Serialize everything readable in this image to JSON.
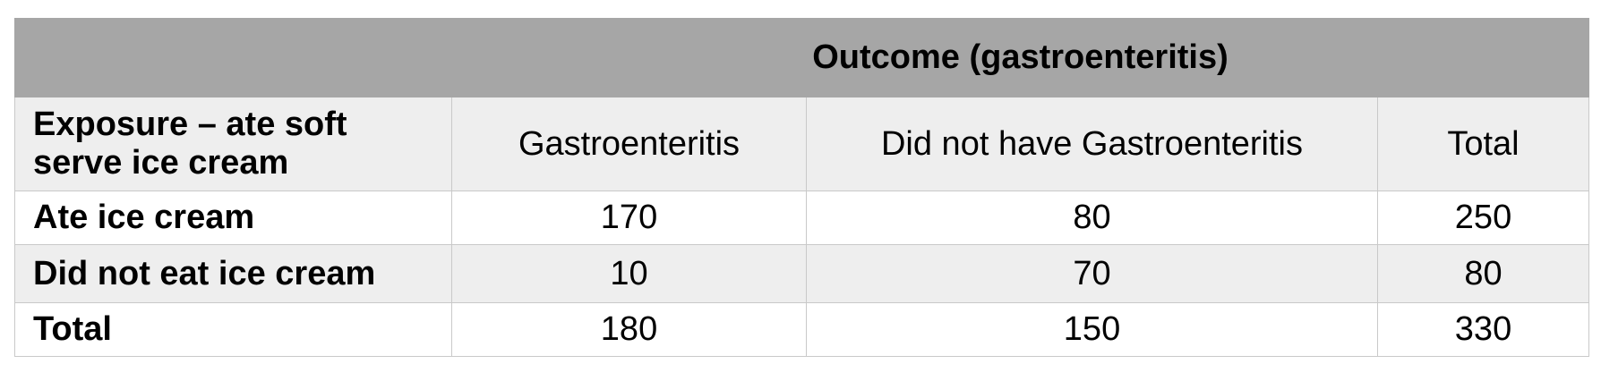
{
  "table": {
    "title": "Outcome (gastroenteritis)",
    "header": {
      "exposure_label": "Exposure – ate soft serve ice cream",
      "columns": [
        "Gastroenteritis",
        "Did not have Gastroenteritis",
        "Total"
      ]
    },
    "rows": [
      {
        "label": "Ate ice cream",
        "values": [
          "170",
          "80",
          "250"
        ]
      },
      {
        "label": "Did not eat ice cream",
        "values": [
          "10",
          "70",
          "80"
        ]
      },
      {
        "label": "Total",
        "values": [
          "180",
          "150",
          "330"
        ]
      }
    ]
  },
  "colors": {
    "title_background": "#a6a6a6",
    "header_background": "#eeeeee",
    "grid_line": "#c9c9c9"
  }
}
